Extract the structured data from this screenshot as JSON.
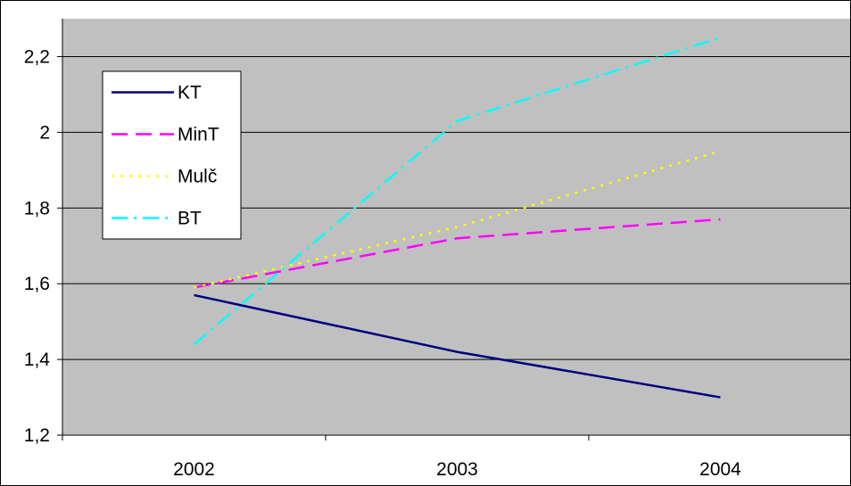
{
  "chart_data": {
    "type": "line",
    "categories": [
      "2002",
      "2003",
      "2004"
    ],
    "ylim": [
      1.2,
      2.3
    ],
    "yticks": [
      1.2,
      1.4,
      1.6,
      1.8,
      2.0,
      2.2
    ],
    "ytick_labels": [
      "1,2",
      "1,4",
      "1,6",
      "1,8",
      "2",
      "2,2"
    ],
    "grid": true,
    "legend_position": "top-left",
    "plot_background": "#c0c0c0",
    "series": [
      {
        "name": "KT",
        "values": [
          1.57,
          1.42,
          1.3
        ],
        "color": "#000080",
        "dash": "solid"
      },
      {
        "name": "MinT",
        "values": [
          1.59,
          1.72,
          1.77
        ],
        "color": "#ff00ff",
        "dash": "dash"
      },
      {
        "name": "Mulč",
        "values": [
          1.59,
          1.75,
          1.95
        ],
        "color": "#ffff00",
        "dash": "dot"
      },
      {
        "name": "BT",
        "values": [
          1.44,
          2.03,
          2.25
        ],
        "color": "#00ffff",
        "dash": "dashdot"
      }
    ],
    "title": "",
    "xlabel": "",
    "ylabel": ""
  }
}
